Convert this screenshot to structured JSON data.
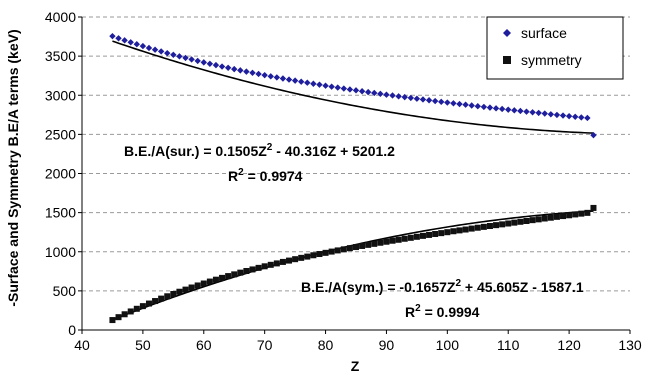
{
  "chart_data": {
    "type": "scatter",
    "xlabel": "Z",
    "ylabel": "-Surface and Symmetry B.E/A terms (keV)",
    "xlim": [
      40,
      130
    ],
    "ylim": [
      0,
      4000
    ],
    "xticks": [
      40,
      50,
      60,
      70,
      80,
      90,
      100,
      110,
      120,
      130
    ],
    "yticks": [
      0,
      500,
      1000,
      1500,
      2000,
      2500,
      3000,
      3500,
      4000
    ],
    "grid": "horizontal dashed",
    "legend_position": "top-right",
    "x": [
      45,
      46,
      47,
      48,
      49,
      50,
      51,
      52,
      53,
      54,
      55,
      56,
      57,
      58,
      59,
      60,
      61,
      62,
      63,
      64,
      65,
      66,
      67,
      68,
      69,
      70,
      71,
      72,
      73,
      74,
      75,
      76,
      77,
      78,
      79,
      80,
      81,
      82,
      83,
      84,
      85,
      86,
      87,
      88,
      89,
      90,
      91,
      92,
      93,
      94,
      95,
      96,
      97,
      98,
      99,
      100,
      101,
      102,
      103,
      104,
      105,
      106,
      107,
      108,
      109,
      110,
      111,
      112,
      113,
      114,
      115,
      116,
      117,
      118,
      119,
      120,
      121,
      122,
      123,
      124
    ],
    "series": [
      {
        "name": "surface",
        "color": "#1f1f9e",
        "marker": "diamond",
        "values": [
          3755,
          3728,
          3702,
          3677,
          3652,
          3628,
          3604,
          3582,
          3560,
          3538,
          3517,
          3497,
          3477,
          3458,
          3439,
          3420,
          3402,
          3385,
          3367,
          3351,
          3334,
          3318,
          3302,
          3287,
          3272,
          3257,
          3242,
          3228,
          3214,
          3200,
          3187,
          3173,
          3160,
          3147,
          3135,
          3122,
          3110,
          3098,
          3086,
          3074,
          3063,
          3051,
          3040,
          3029,
          3018,
          3007,
          2997,
          2986,
          2976,
          2966,
          2956,
          2946,
          2936,
          2926,
          2916,
          2907,
          2897,
          2888,
          2879,
          2869,
          2860,
          2851,
          2842,
          2833,
          2825,
          2816,
          2807,
          2799,
          2790,
          2782,
          2774,
          2766,
          2757,
          2749,
          2741,
          2733,
          2725,
          2717,
          2710,
          2490
        ]
      },
      {
        "name": "symmetry",
        "color": "#111111",
        "marker": "square",
        "values": [
          127,
          164,
          201,
          237,
          271,
          305,
          338,
          370,
          401,
          431,
          460,
          489,
          516,
          543,
          569,
          594,
          619,
          643,
          666,
          689,
          711,
          733,
          754,
          774,
          794,
          814,
          833,
          851,
          870,
          887,
          905,
          922,
          938,
          955,
          971,
          986,
          1002,
          1017,
          1031,
          1046,
          1060,
          1074,
          1088,
          1101,
          1115,
          1128,
          1141,
          1153,
          1166,
          1178,
          1191,
          1203,
          1215,
          1227,
          1238,
          1250,
          1262,
          1273,
          1284,
          1296,
          1307,
          1318,
          1329,
          1340,
          1350,
          1361,
          1372,
          1383,
          1393,
          1404,
          1414,
          1425,
          1435,
          1446,
          1456,
          1466,
          1477,
          1487,
          1497,
          1560
        ]
      }
    ],
    "trendlines": [
      {
        "series": "surface",
        "coeffs": [
          0.1505,
          -40.316,
          5201.2
        ],
        "color": "#000000"
      },
      {
        "series": "symmetry",
        "coeffs": [
          -0.1657,
          45.605,
          -1587.1
        ],
        "color": "#000000"
      }
    ],
    "annotations": [
      {
        "id": "sur",
        "eq_prefix": "B.E./A(sur.) = 0.1505Z",
        "eq_sup": "2",
        "eq_suffix": " - 40.316Z + 5201.2",
        "r2_prefix": "R",
        "r2_sup": "2",
        "r2_suffix": " = 0.9974"
      },
      {
        "id": "sym",
        "eq_prefix": "B.E./A(sym.) = -0.1657Z",
        "eq_sup": "2",
        "eq_suffix": " + 45.605Z - 1587.1",
        "r2_prefix": "R",
        "r2_sup": "2",
        "r2_suffix": " = 0.9994"
      }
    ]
  }
}
